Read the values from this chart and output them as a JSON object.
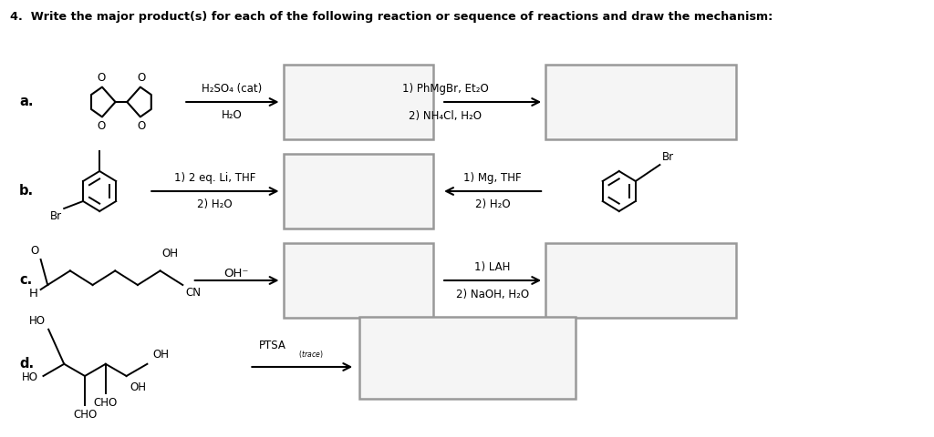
{
  "title": "4.  Write the major product(s) for each of the following reaction or sequence of reactions and draw the mechanism:",
  "bg_color": "#ffffff",
  "font_color": "#000000",
  "box_edge_color": "#999999",
  "box_face_color": "#f5f5f5",
  "label_a": "a.",
  "label_b": "b.",
  "label_c": "c.",
  "label_d": "d.",
  "rxn_a1_line1": "H₂SO₄ (cat)",
  "rxn_a1_line2": "H₂O",
  "rxn_a2_line1": "1) PhMgBr, Et₂O",
  "rxn_a2_line2": "2) NH₄Cl, H₂O",
  "rxn_b1_line1": "1) 2 eq. Li, THF",
  "rxn_b1_line2": "2) H₂O",
  "rxn_b2_line1": "1) Mg, THF",
  "rxn_b2_line2": "2) H₂O",
  "rxn_c1_line1": "OH⁻",
  "rxn_c2_line1": "1) LAH",
  "rxn_c2_line2": "2) NaOH, H₂O",
  "rxn_d1_line1": "PTSA",
  "rxn_d1_sub": "(trace)"
}
